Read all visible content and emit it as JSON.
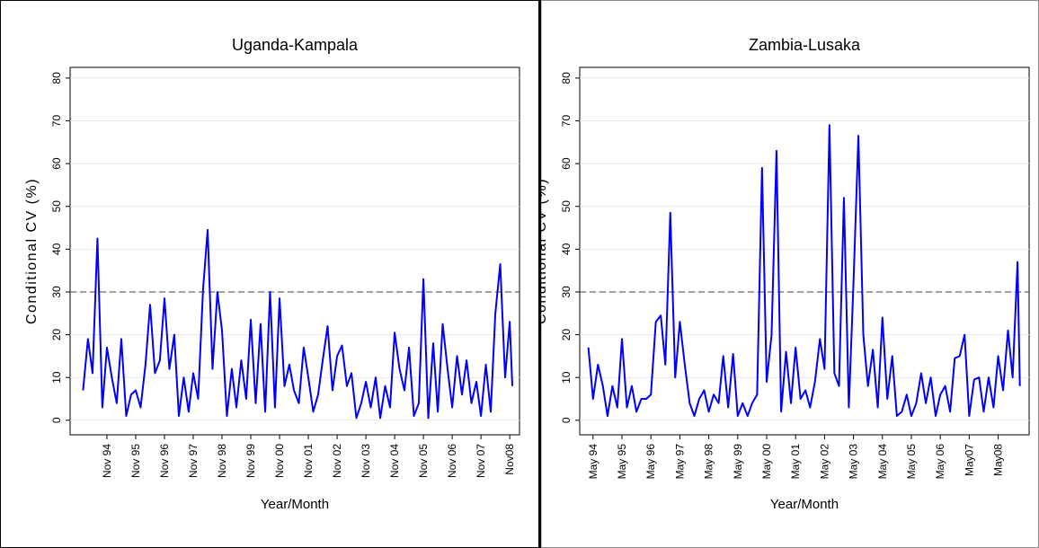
{
  "chart_data": [
    {
      "type": "line",
      "title": "Uganda-Kampala",
      "xlabel": "Year/Month",
      "ylabel": "Conditional CV (%)",
      "x": [
        1994,
        1994.17,
        1994.33,
        1994.5,
        1994.67,
        1994.83,
        1995,
        1995.17,
        1995.33,
        1995.5,
        1995.67,
        1995.83,
        1996,
        1996.17,
        1996.33,
        1996.5,
        1996.67,
        1996.83,
        1997,
        1997.17,
        1997.33,
        1997.5,
        1997.67,
        1997.83,
        1998,
        1998.17,
        1998.33,
        1998.5,
        1998.67,
        1998.83,
        1999,
        1999.17,
        1999.33,
        1999.5,
        1999.67,
        1999.83,
        2000,
        2000.17,
        2000.33,
        2000.5,
        2000.67,
        2000.83,
        2001,
        2001.17,
        2001.33,
        2001.5,
        2001.67,
        2001.83,
        2002,
        2002.17,
        2002.33,
        2002.5,
        2002.67,
        2002.83,
        2003,
        2003.17,
        2003.33,
        2003.5,
        2003.67,
        2003.83,
        2004,
        2004.17,
        2004.33,
        2004.5,
        2004.67,
        2004.83,
        2005,
        2005.17,
        2005.33,
        2005.5,
        2005.67,
        2005.83,
        2006,
        2006.17,
        2006.33,
        2006.5,
        2006.67,
        2006.83,
        2007,
        2007.17,
        2007.33,
        2007.5,
        2007.67,
        2007.83,
        2008,
        2008.17,
        2008.33,
        2008.5,
        2008.67,
        2008.83,
        2008.92
      ],
      "values": [
        7,
        19,
        11,
        42.5,
        3,
        17,
        10,
        4,
        19,
        1,
        6,
        7,
        3,
        13,
        27,
        11,
        14,
        28.5,
        12,
        20,
        1,
        10,
        2,
        11,
        5,
        30.5,
        44.5,
        12,
        30,
        21,
        1,
        12,
        3,
        14,
        5,
        23.5,
        4,
        22.5,
        2,
        30,
        3,
        28.5,
        8,
        13,
        7,
        4,
        17,
        10,
        2,
        6,
        14,
        22,
        7,
        15,
        17.5,
        8,
        11,
        0.5,
        4,
        9,
        3,
        10,
        0.5,
        8,
        3,
        20.5,
        12,
        7,
        17,
        1,
        4,
        33,
        0.5,
        18,
        2,
        22.5,
        12,
        3,
        15,
        6,
        14,
        4,
        9,
        1,
        13,
        2,
        25,
        36.5,
        10,
        23,
        8
      ],
      "color": "#0000ff",
      "xlim": [
        1993.55,
        2009.17
      ],
      "ylim": [
        -3.4,
        82.5
      ],
      "xticks": [
        {
          "value": 1994.83,
          "label": "Nov 94"
        },
        {
          "value": 1995.83,
          "label": "Nov 95"
        },
        {
          "value": 1996.83,
          "label": "Nov 96"
        },
        {
          "value": 1997.83,
          "label": "Nov 97"
        },
        {
          "value": 1998.83,
          "label": "Nov 98"
        },
        {
          "value": 1999.83,
          "label": "Nov 99"
        },
        {
          "value": 2000.83,
          "label": "Nov 00"
        },
        {
          "value": 2001.83,
          "label": "Nov 01"
        },
        {
          "value": 2002.83,
          "label": "Nov 02"
        },
        {
          "value": 2003.83,
          "label": "Nov 03"
        },
        {
          "value": 2004.83,
          "label": "Nov 04"
        },
        {
          "value": 2005.83,
          "label": "Nov 05"
        },
        {
          "value": 2006.83,
          "label": "Nov 06"
        },
        {
          "value": 2007.83,
          "label": "Nov 07"
        },
        {
          "value": 2008.83,
          "label": "Nov08"
        }
      ],
      "yticks": [
        0,
        10,
        20,
        30,
        40,
        50,
        60,
        70,
        80
      ],
      "grid": true,
      "reference_line": 30
    },
    {
      "type": "line",
      "title": "Zambia-Lusaka",
      "xlabel": "Year/Month",
      "ylabel": "Conditional CV (%)",
      "x": [
        1994.17,
        1994.33,
        1994.5,
        1994.67,
        1994.83,
        1995,
        1995.17,
        1995.33,
        1995.5,
        1995.67,
        1995.83,
        1996,
        1996.17,
        1996.33,
        1996.5,
        1996.67,
        1996.83,
        1997,
        1997.17,
        1997.33,
        1997.5,
        1997.67,
        1997.83,
        1998,
        1998.17,
        1998.33,
        1998.5,
        1998.67,
        1998.83,
        1999,
        1999.17,
        1999.33,
        1999.5,
        1999.67,
        1999.83,
        2000,
        2000.17,
        2000.33,
        2000.5,
        2000.67,
        2000.83,
        2001,
        2001.17,
        2001.33,
        2001.5,
        2001.67,
        2001.83,
        2002,
        2002.17,
        2002.33,
        2002.5,
        2002.67,
        2002.83,
        2003,
        2003.17,
        2003.33,
        2003.5,
        2003.67,
        2003.83,
        2004,
        2004.17,
        2004.33,
        2004.5,
        2004.67,
        2004.83,
        2005,
        2005.17,
        2005.33,
        2005.5,
        2005.67,
        2005.83,
        2006,
        2006.17,
        2006.33,
        2006.5,
        2006.67,
        2006.83,
        2007,
        2007.17,
        2007.33,
        2007.5,
        2007.67,
        2007.83,
        2008,
        2008.17,
        2008.33,
        2008.5,
        2008.67,
        2008.83,
        2009,
        2009.08
      ],
      "values": [
        17,
        5,
        13,
        8,
        1,
        8,
        3,
        19,
        3,
        8,
        2,
        5,
        5,
        6,
        23,
        24.5,
        13,
        48.5,
        10,
        23,
        13,
        4,
        1,
        5,
        7,
        2,
        6,
        4,
        15,
        3,
        15.5,
        1,
        4,
        1,
        4,
        6,
        59,
        9,
        20,
        63,
        2,
        16,
        4,
        17,
        5,
        7,
        3,
        9,
        19,
        12,
        69,
        11,
        8,
        52,
        3,
        32,
        66.5,
        20,
        8,
        16.5,
        3,
        24,
        5,
        15,
        1,
        2,
        6,
        1,
        4,
        11,
        4,
        10,
        1,
        6,
        8,
        2,
        14.5,
        15,
        20,
        1,
        9.5,
        10,
        2,
        10,
        3,
        15,
        7,
        21,
        10,
        37,
        8
      ],
      "color": "#0000ff",
      "xlim": [
        1993.87,
        2009.4
      ],
      "ylim": [
        -3.4,
        82.5
      ],
      "xticks": [
        {
          "value": 1994.33,
          "label": "May 94"
        },
        {
          "value": 1995.33,
          "label": "May 95"
        },
        {
          "value": 1996.33,
          "label": "May 96"
        },
        {
          "value": 1997.33,
          "label": "May 97"
        },
        {
          "value": 1998.33,
          "label": "May 98"
        },
        {
          "value": 1999.33,
          "label": "May 99"
        },
        {
          "value": 2000.33,
          "label": "May 00"
        },
        {
          "value": 2001.33,
          "label": "May 01"
        },
        {
          "value": 2002.33,
          "label": "May 02"
        },
        {
          "value": 2003.33,
          "label": "May 03"
        },
        {
          "value": 2004.33,
          "label": "May 04"
        },
        {
          "value": 2005.33,
          "label": "May 05"
        },
        {
          "value": 2006.33,
          "label": "May 06"
        },
        {
          "value": 2007.33,
          "label": "May07"
        },
        {
          "value": 2008.33,
          "label": "May08"
        }
      ],
      "yticks": [
        0,
        10,
        20,
        30,
        40,
        50,
        60,
        70,
        80
      ],
      "grid": true,
      "reference_line": 30
    }
  ]
}
